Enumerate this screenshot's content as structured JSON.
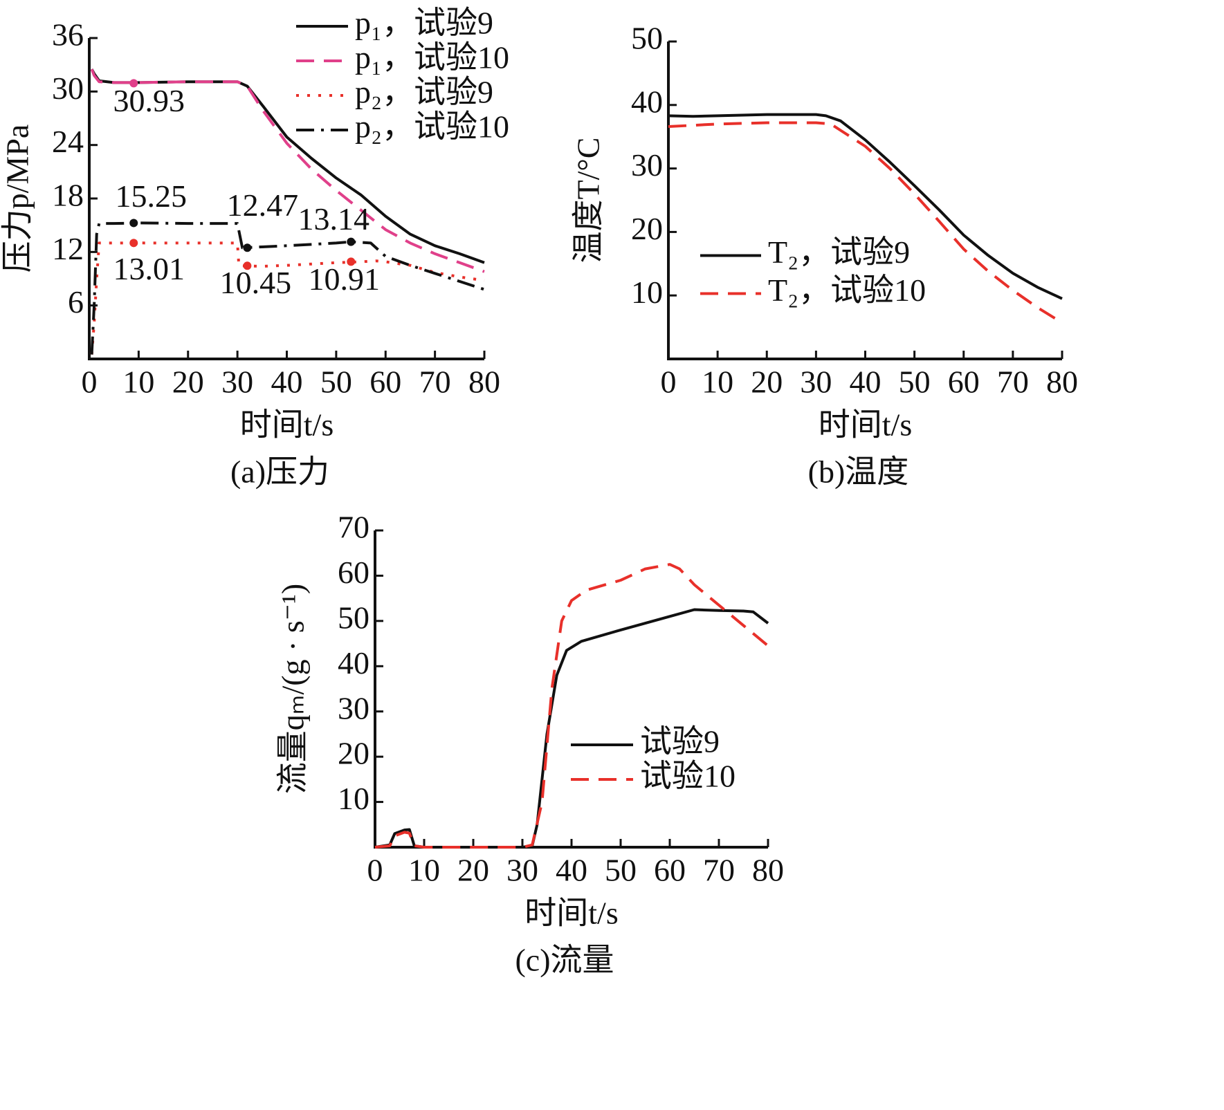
{
  "chart_data": [
    {
      "type": "line",
      "caption": "(a)压力",
      "xlabel": "时间t/s",
      "ylabel": "压力p/MPa",
      "xlim": [
        0,
        80
      ],
      "xticks": [
        0,
        10,
        20,
        30,
        40,
        50,
        60,
        70,
        80
      ],
      "ylim": [
        0,
        36
      ],
      "yticks": [
        6,
        12,
        18,
        24,
        30,
        36
      ],
      "grid": false,
      "legend": "upper right",
      "series": [
        {
          "name": "p₁，试验9",
          "color": "#111111",
          "linestyle": "solid",
          "x": [
            0.5,
            1,
            2,
            5,
            10,
            20,
            30,
            32,
            35,
            40,
            45,
            50,
            55,
            60,
            65,
            70,
            75,
            80
          ],
          "values": [
            32.5,
            32,
            31.2,
            31,
            31,
            31.1,
            31.1,
            30.6,
            28.5,
            24.9,
            22.5,
            20.3,
            18.4,
            16.0,
            14.0,
            12.7,
            11.8,
            10.8
          ]
        },
        {
          "name": "p₁，试验10",
          "color": "#e0408a",
          "linestyle": "dashed",
          "x": [
            0.5,
            1,
            2,
            5,
            10,
            20,
            30,
            32,
            35,
            40,
            45,
            50,
            55,
            60,
            65,
            70,
            75,
            80
          ],
          "values": [
            32.5,
            31.8,
            31.1,
            31,
            31,
            31.1,
            31.1,
            30.6,
            28,
            24.2,
            21.3,
            18.9,
            16.7,
            14.5,
            13.0,
            11.8,
            10.8,
            9.8
          ]
        },
        {
          "name": "p₂，试验9",
          "color": "#e8302a",
          "linestyle": "dotted",
          "x": [
            0.5,
            1,
            1.5,
            2,
            5,
            10,
            20,
            30,
            30.3,
            35,
            40,
            50,
            55,
            58,
            60,
            65,
            70,
            75,
            80
          ],
          "values": [
            0.5,
            4,
            9,
            13,
            13,
            13.01,
            13,
            13,
            10.45,
            10.4,
            10.5,
            10.8,
            10.9,
            11,
            10.9,
            10.5,
            9.7,
            9.2,
            8.8
          ]
        },
        {
          "name": "p₂，试验10",
          "color": "#111111",
          "linestyle": "dashdot",
          "x": [
            0.5,
            1,
            1.5,
            2,
            5,
            10,
            20,
            30,
            31,
            40,
            50,
            53,
            57,
            60,
            65,
            70,
            75,
            80
          ],
          "values": [
            0.5,
            6,
            14,
            15.2,
            15.2,
            15.25,
            15.2,
            15.2,
            12.47,
            12.7,
            13.0,
            13.14,
            13.0,
            11.5,
            10.5,
            9.6,
            8.7,
            7.8
          ]
        }
      ],
      "annotations": [
        {
          "text": "30.93",
          "x": 9,
          "y": 30.93,
          "color": "#e0408a"
        },
        {
          "text": "15.25",
          "x": 9,
          "y": 15.25,
          "color": "#111111"
        },
        {
          "text": "13.01",
          "x": 9,
          "y": 13.01,
          "color": "#e8302a"
        },
        {
          "text": "12.47",
          "x": 32,
          "y": 12.47,
          "color": "#111111"
        },
        {
          "text": "10.45",
          "x": 32,
          "y": 10.45,
          "color": "#e8302a"
        },
        {
          "text": "10.91",
          "x": 53,
          "y": 10.91,
          "color": "#e8302a"
        },
        {
          "text": "13.14",
          "x": 53,
          "y": 13.14,
          "color": "#111111"
        }
      ]
    },
    {
      "type": "line",
      "caption": "(b)温度",
      "xlabel": "时间t/s",
      "ylabel": "温度T/°C",
      "xlim": [
        0,
        80
      ],
      "xticks": [
        0,
        10,
        20,
        30,
        40,
        50,
        60,
        70,
        80
      ],
      "ylim": [
        0,
        50
      ],
      "yticks": [
        10,
        20,
        30,
        40,
        50
      ],
      "grid": false,
      "legend": "center left",
      "series": [
        {
          "name": "T₂，试验9",
          "color": "#111111",
          "linestyle": "solid",
          "x": [
            0,
            5,
            10,
            20,
            30,
            32,
            35,
            40,
            45,
            50,
            55,
            60,
            65,
            70,
            75,
            80
          ],
          "values": [
            38.3,
            38.2,
            38.3,
            38.5,
            38.5,
            38.3,
            37.5,
            34.5,
            31,
            27.3,
            23.5,
            19.5,
            16.3,
            13.5,
            11.3,
            9.5
          ]
        },
        {
          "name": "T₂，试验10",
          "color": "#e8302a",
          "linestyle": "dashed",
          "x": [
            0,
            5,
            10,
            20,
            30,
            33,
            35,
            40,
            45,
            50,
            55,
            60,
            65,
            70,
            75,
            80
          ],
          "values": [
            36.6,
            36.8,
            37,
            37.2,
            37.2,
            37,
            36,
            33.5,
            30,
            26,
            21.7,
            17.3,
            13.8,
            10.8,
            8.1,
            5.7
          ]
        }
      ]
    },
    {
      "type": "line",
      "caption": "(c)流量",
      "xlabel": "时间t/s",
      "ylabel": "流量qₘ/(g · s⁻¹)",
      "xlim": [
        0,
        80
      ],
      "xticks": [
        0,
        10,
        20,
        30,
        40,
        50,
        60,
        70,
        80
      ],
      "ylim": [
        0,
        70
      ],
      "yticks": [
        10,
        20,
        30,
        40,
        50,
        60,
        70
      ],
      "grid": false,
      "legend": "center right",
      "series": [
        {
          "name": "试验9",
          "color": "#111111",
          "linestyle": "solid",
          "x": [
            0,
            3,
            4,
            6,
            7,
            8,
            10,
            30,
            32,
            33,
            35,
            37,
            39,
            42,
            50,
            60,
            65,
            70,
            75,
            77,
            80
          ],
          "values": [
            0,
            0.5,
            3,
            3.8,
            3.9,
            0.3,
            0,
            0,
            0.3,
            5,
            25,
            38,
            43.5,
            45.5,
            48,
            51,
            52.5,
            52.3,
            52.2,
            52,
            49.5
          ]
        },
        {
          "name": "试验10",
          "color": "#e8302a",
          "linestyle": "dashed",
          "x": [
            0,
            3,
            4,
            6,
            7,
            8,
            10,
            30,
            32,
            34,
            36,
            38,
            40,
            43,
            50,
            55,
            60,
            62,
            65,
            70,
            75,
            80
          ],
          "values": [
            0,
            0.3,
            2.5,
            3.3,
            3.1,
            0.3,
            0,
            0,
            0.5,
            10,
            35,
            50,
            54.5,
            56.8,
            59,
            61.5,
            62.5,
            61.5,
            58,
            53.5,
            49,
            44.5
          ]
        }
      ]
    }
  ]
}
